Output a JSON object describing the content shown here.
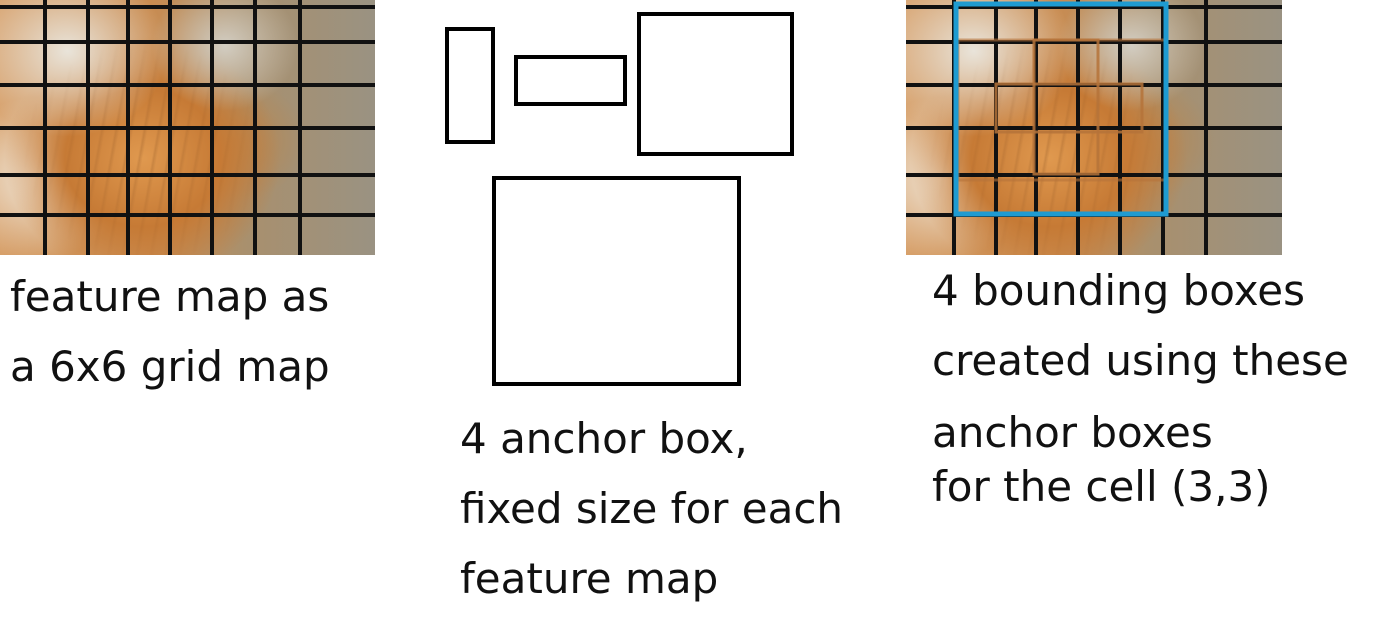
{
  "panels": {
    "feature_map": {
      "caption_lines": [
        "feature map as",
        "a 6x6 grid map"
      ]
    },
    "anchor_boxes": {
      "caption_lines": [
        "4 anchor box,",
        "fixed size for each",
        "feature map"
      ]
    },
    "bounding_boxes": {
      "caption_lines": [
        "4 bounding boxes",
        "created using these",
        "anchor boxes",
        "for the cell (3,3)"
      ],
      "highlight_color": "#1f9bd1"
    }
  },
  "colors": {
    "grid_line": "#111111",
    "box_stroke": "#000000",
    "highlight": "#1f9bd1",
    "inner_box": "#b5733a"
  }
}
